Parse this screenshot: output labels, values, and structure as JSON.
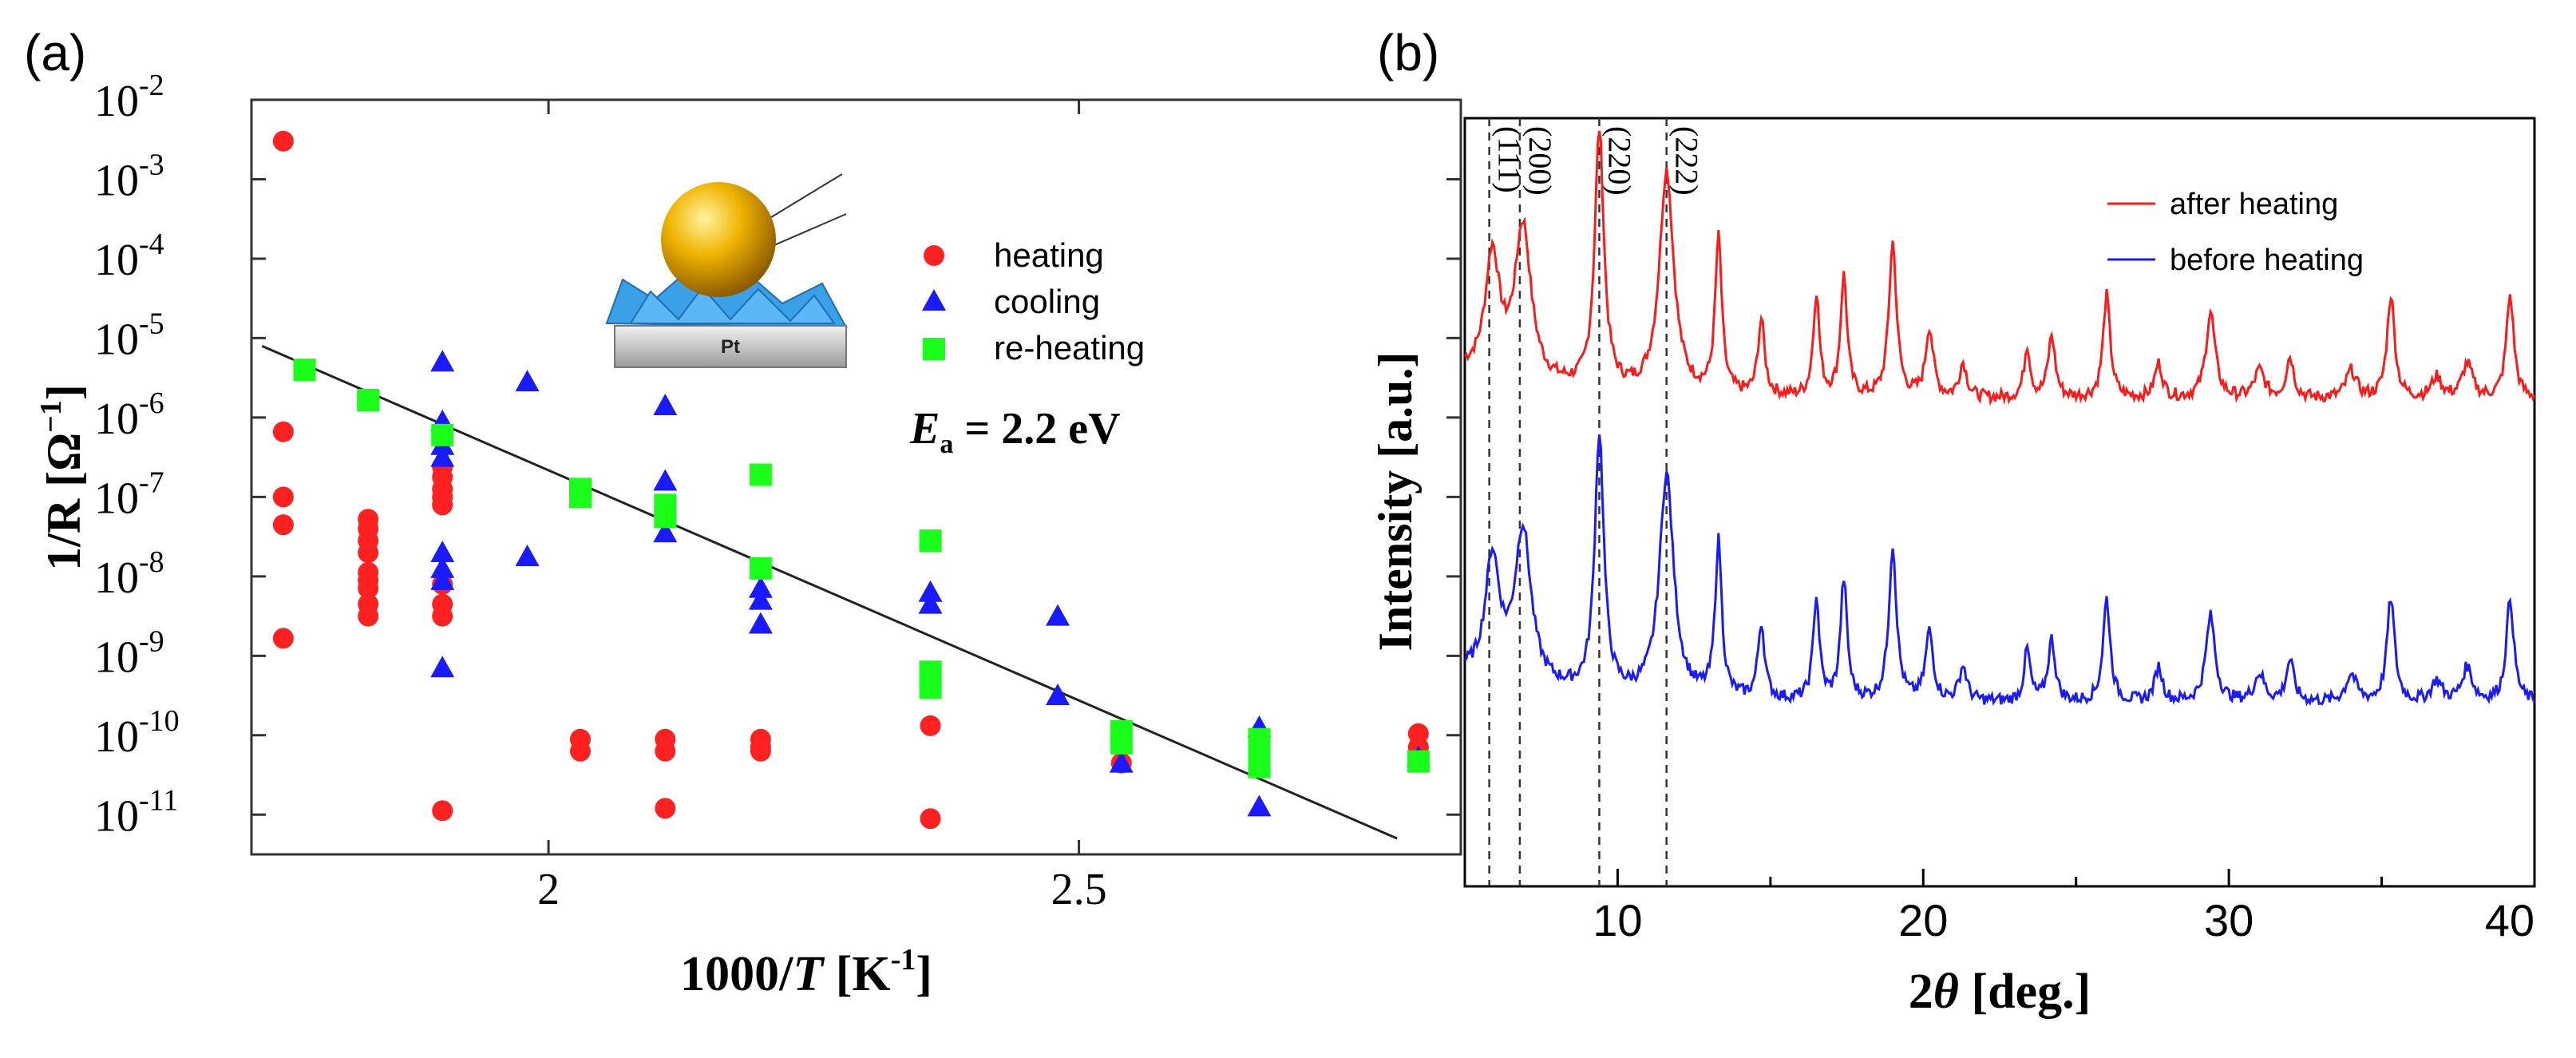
{
  "colors": {
    "heating": "#ff2020",
    "cooling": "#1a1aff",
    "reheating": "#19ff19",
    "fit": "#222222",
    "after": "#ff1a1a",
    "before": "#1a1aff"
  },
  "chart_data": [
    {
      "type": "scatter",
      "panel_label": "(a)",
      "title": "",
      "xlabel_main": "1000/",
      "xlabel_italic": "T",
      "xlabel_unit": " [K",
      "xlabel_unit_sup": "-1",
      "xlabel_unit_close": "]",
      "ylabel_main": "1/R [Ω",
      "ylabel_sup": "−1",
      "ylabel_close": "]",
      "xlim": [
        1.72,
        2.86
      ],
      "ylim_log10": [
        -11.5,
        -2
      ],
      "x_ticks": [
        {
          "value": 2.0,
          "label": "2"
        },
        {
          "value": 2.5,
          "label": "2.5"
        }
      ],
      "y_ticks": [
        {
          "value": -2,
          "base": "10",
          "exp": "-2"
        },
        {
          "value": -3,
          "base": "10",
          "exp": "-3"
        },
        {
          "value": -4,
          "base": "10",
          "exp": "-4"
        },
        {
          "value": -5,
          "base": "10",
          "exp": "-5"
        },
        {
          "value": -6,
          "base": "10",
          "exp": "-6"
        },
        {
          "value": -7,
          "base": "10",
          "exp": "-7"
        },
        {
          "value": -8,
          "base": "10",
          "exp": "-8"
        },
        {
          "value": -9,
          "base": "10",
          "exp": "-9"
        },
        {
          "value": -10,
          "base": "10",
          "exp": "-10"
        },
        {
          "value": -11,
          "base": "10",
          "exp": "-11"
        }
      ],
      "legend": [
        {
          "label": "heating",
          "marker": "circle"
        },
        {
          "label": "cooling",
          "marker": "triangle"
        },
        {
          "label": "re-heating",
          "marker": "square"
        }
      ],
      "annotation": {
        "symbol": "E",
        "subscript": "a",
        "text": " =  2.2 eV"
      },
      "inset_label": "Pt",
      "fit_line": {
        "x": [
          1.73,
          2.8
        ],
        "log10_y": [
          -5.1,
          -11.3
        ]
      },
      "series": [
        {
          "name": "heating",
          "points": [
            [
              1.75,
              -2.52
            ],
            [
              1.75,
              -6.18
            ],
            [
              1.75,
              -7.0
            ],
            [
              1.75,
              -7.35
            ],
            [
              1.75,
              -8.78
            ],
            [
              1.83,
              -7.28
            ],
            [
              1.83,
              -7.4
            ],
            [
              1.83,
              -7.55
            ],
            [
              1.83,
              -7.7
            ],
            [
              1.83,
              -7.95
            ],
            [
              1.83,
              -8.05
            ],
            [
              1.83,
              -8.15
            ],
            [
              1.83,
              -8.35
            ],
            [
              1.83,
              -8.5
            ],
            [
              1.9,
              -6.62
            ],
            [
              1.9,
              -6.75
            ],
            [
              1.9,
              -6.9
            ],
            [
              1.9,
              -7.0
            ],
            [
              1.9,
              -7.1
            ],
            [
              1.9,
              -8.1
            ],
            [
              1.9,
              -8.35
            ],
            [
              1.9,
              -8.5
            ],
            [
              1.9,
              -10.95
            ],
            [
              2.03,
              -10.05
            ],
            [
              2.03,
              -10.2
            ],
            [
              2.11,
              -10.05
            ],
            [
              2.11,
              -10.2
            ],
            [
              2.11,
              -10.92
            ],
            [
              2.2,
              -10.05
            ],
            [
              2.2,
              -10.15
            ],
            [
              2.2,
              -10.2
            ],
            [
              2.36,
              -9.88
            ],
            [
              2.36,
              -11.05
            ],
            [
              2.54,
              -10.35
            ],
            [
              2.67,
              -10.05
            ],
            [
              2.82,
              -9.98
            ],
            [
              2.82,
              -10.15
            ]
          ]
        },
        {
          "name": "cooling",
          "points": [
            [
              1.9,
              -5.3
            ],
            [
              1.9,
              -6.05
            ],
            [
              1.9,
              -6.35
            ],
            [
              1.9,
              -6.5
            ],
            [
              1.9,
              -7.7
            ],
            [
              1.9,
              -7.9
            ],
            [
              1.9,
              -8.05
            ],
            [
              1.9,
              -9.15
            ],
            [
              1.98,
              -5.55
            ],
            [
              1.98,
              -7.75
            ],
            [
              2.11,
              -5.85
            ],
            [
              2.11,
              -6.8
            ],
            [
              2.11,
              -7.45
            ],
            [
              2.2,
              -8.15
            ],
            [
              2.2,
              -8.3
            ],
            [
              2.2,
              -8.6
            ],
            [
              2.36,
              -8.2
            ],
            [
              2.36,
              -8.35
            ],
            [
              2.48,
              -8.5
            ],
            [
              2.48,
              -9.5
            ],
            [
              2.54,
              -10.35
            ],
            [
              2.67,
              -9.9
            ],
            [
              2.67,
              -10.9
            ],
            [
              2.82,
              -10.28
            ]
          ]
        },
        {
          "name": "re-heating",
          "points": [
            [
              1.77,
              -5.4
            ],
            [
              1.83,
              -5.78
            ],
            [
              1.9,
              -6.22
            ],
            [
              2.03,
              -6.9
            ],
            [
              2.03,
              -7.0
            ],
            [
              2.11,
              -7.1
            ],
            [
              2.11,
              -7.25
            ],
            [
              2.2,
              -6.72
            ],
            [
              2.2,
              -7.9
            ],
            [
              2.36,
              -7.55
            ],
            [
              2.36,
              -9.2
            ],
            [
              2.36,
              -9.3
            ],
            [
              2.36,
              -9.4
            ],
            [
              2.54,
              -9.95
            ],
            [
              2.54,
              -10.1
            ],
            [
              2.67,
              -10.05
            ],
            [
              2.67,
              -10.15
            ],
            [
              2.67,
              -10.3
            ],
            [
              2.67,
              -10.4
            ],
            [
              2.82,
              -10.33
            ]
          ]
        }
      ]
    },
    {
      "type": "line",
      "panel_label": "(b)",
      "title": "",
      "xlabel_num": "2",
      "xlabel_italic": "θ",
      "xlabel_rest": " [deg.]",
      "ylabel": "Intensity [a.u.]",
      "xlim": [
        5,
        40
      ],
      "x_ticks": [
        {
          "value": 10,
          "label": "10"
        },
        {
          "value": 20,
          "label": "20"
        },
        {
          "value": 30,
          "label": "30"
        },
        {
          "value": 40,
          "label": "40"
        }
      ],
      "reference_lines": [
        {
          "x": 5.8,
          "label": "(111)"
        },
        {
          "x": 6.8,
          "label": "(200)"
        },
        {
          "x": 9.4,
          "label": "(220)"
        },
        {
          "x": 11.6,
          "label": "(222)"
        }
      ],
      "legend": [
        {
          "label": "after heating",
          "series": "after"
        },
        {
          "label": "before heating",
          "series": "before"
        }
      ],
      "peaks": [
        [
          5.9,
          0.35,
          0.28
        ],
        [
          6.9,
          0.45,
          0.32
        ],
        [
          9.4,
          0.75,
          0.18
        ],
        [
          11.6,
          0.65,
          0.28
        ],
        [
          13.3,
          0.45,
          0.13
        ],
        [
          14.7,
          0.22,
          0.13
        ],
        [
          16.5,
          0.3,
          0.12
        ],
        [
          17.4,
          0.35,
          0.13
        ],
        [
          19.0,
          0.45,
          0.15
        ],
        [
          20.2,
          0.2,
          0.15
        ],
        [
          21.3,
          0.1,
          0.15
        ],
        [
          23.4,
          0.15,
          0.12
        ],
        [
          24.2,
          0.18,
          0.14
        ],
        [
          26.0,
          0.3,
          0.14
        ],
        [
          27.7,
          0.1,
          0.15
        ],
        [
          29.4,
          0.25,
          0.18
        ],
        [
          31.0,
          0.08,
          0.2
        ],
        [
          32.0,
          0.12,
          0.15
        ],
        [
          34.0,
          0.08,
          0.2
        ],
        [
          35.3,
          0.3,
          0.15
        ],
        [
          36.8,
          0.06,
          0.2
        ],
        [
          37.8,
          0.1,
          0.2
        ],
        [
          39.2,
          0.3,
          0.15
        ]
      ],
      "series": [
        {
          "name": "after heating",
          "offset": 1.0
        },
        {
          "name": "before heating",
          "offset": 0.0
        }
      ]
    }
  ]
}
